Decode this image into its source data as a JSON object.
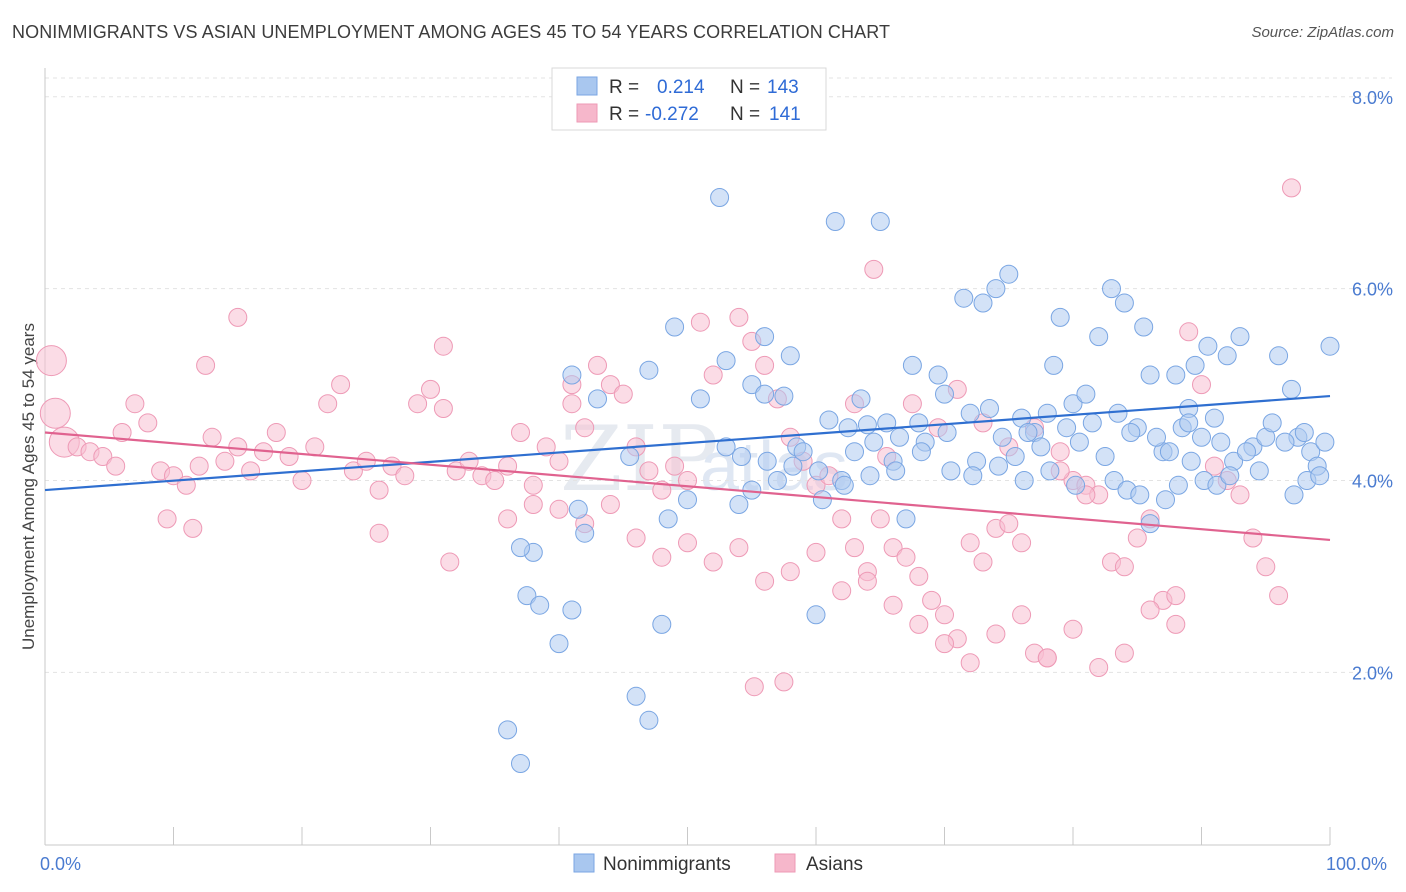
{
  "title": "NONIMMIGRANTS VS ASIAN UNEMPLOYMENT AMONG AGES 45 TO 54 YEARS CORRELATION CHART",
  "source": "Source: ZipAtlas.com",
  "watermark": {
    "zip": "ZIP",
    "atlas": "atlas"
  },
  "legend": {
    "rows": [
      {
        "r_label": "R =",
        "r_value": "0.214",
        "n_label": "N =",
        "n_value": "143",
        "color": "#a9c7ef"
      },
      {
        "r_label": "R =",
        "r_value": "-0.272",
        "n_label": "N =",
        "n_value": "141",
        "color": "#f6b7cb"
      }
    ]
  },
  "bottom_legend": [
    {
      "label": "Nonimmigrants",
      "color": "#a9c7ef"
    },
    {
      "label": "Asians",
      "color": "#f6b7cb"
    }
  ],
  "chart_data": {
    "type": "scatter",
    "title": "NONIMMIGRANTS VS ASIAN UNEMPLOYMENT AMONG AGES 45 TO 54 YEARS CORRELATION CHART",
    "xlabel": "",
    "ylabel": "Unemployment Among Ages 45 to 54 years",
    "xlim": [
      0,
      100
    ],
    "ylim": [
      0.2,
      8.3
    ],
    "x_tick_labels": [
      "0.0%",
      "100.0%"
    ],
    "y_ticks": [
      2.0,
      4.0,
      6.0,
      8.0
    ],
    "y_tick_labels": [
      "2.0%",
      "4.0%",
      "6.0%",
      "8.0%"
    ],
    "series": [
      {
        "name": "Nonimmigrants",
        "color": "#6a9fe0",
        "trend": {
          "x": [
            0,
            100
          ],
          "y": [
            3.9,
            4.88
          ],
          "color": "#2f6fd0"
        },
        "points": [
          [
            41,
            5.1
          ],
          [
            52.5,
            6.95
          ],
          [
            49,
            5.6
          ],
          [
            56,
            5.5
          ],
          [
            47,
            5.15
          ],
          [
            53,
            5.25
          ],
          [
            51,
            4.85
          ],
          [
            43,
            4.85
          ],
          [
            55,
            5.0
          ],
          [
            57.5,
            4.88
          ],
          [
            58.5,
            4.35
          ],
          [
            61,
            4.63
          ],
          [
            62.5,
            4.55
          ],
          [
            63,
            4.3
          ],
          [
            64,
            4.58
          ],
          [
            65.5,
            4.6
          ],
          [
            66,
            4.2
          ],
          [
            67.5,
            5.2
          ],
          [
            69.5,
            5.1
          ],
          [
            70,
            4.9
          ],
          [
            71.5,
            5.9
          ],
          [
            73,
            5.85
          ],
          [
            74,
            6.0
          ],
          [
            75,
            6.15
          ],
          [
            76,
            4.65
          ],
          [
            77,
            4.5
          ],
          [
            78,
            4.7
          ],
          [
            78.5,
            5.2
          ],
          [
            79,
            5.7
          ],
          [
            80,
            4.8
          ],
          [
            81,
            4.9
          ],
          [
            82,
            5.5
          ],
          [
            83,
            6.0
          ],
          [
            83.5,
            4.7
          ],
          [
            84,
            5.85
          ],
          [
            85,
            4.55
          ],
          [
            85.5,
            5.6
          ],
          [
            86,
            5.1
          ],
          [
            87,
            4.3
          ],
          [
            88,
            5.1
          ],
          [
            89,
            4.75
          ],
          [
            89.5,
            5.2
          ],
          [
            90.5,
            5.4
          ],
          [
            91,
            4.65
          ],
          [
            92,
            5.3
          ],
          [
            93,
            5.5
          ],
          [
            94,
            4.35
          ],
          [
            95,
            4.45
          ],
          [
            96,
            5.3
          ],
          [
            97,
            4.95
          ],
          [
            97.5,
            4.45
          ],
          [
            98,
            4.5
          ],
          [
            98.5,
            4.3
          ],
          [
            99,
            4.15
          ],
          [
            100,
            5.4
          ],
          [
            61.5,
            6.7
          ],
          [
            65,
            6.7
          ],
          [
            53,
            4.35
          ],
          [
            50,
            3.8
          ],
          [
            45.5,
            4.25
          ],
          [
            54,
            3.75
          ],
          [
            48.5,
            3.6
          ],
          [
            41.5,
            3.7
          ],
          [
            42,
            3.45
          ],
          [
            38,
            3.25
          ],
          [
            37,
            3.3
          ],
          [
            37.5,
            2.8
          ],
          [
            38.5,
            2.7
          ],
          [
            41,
            2.65
          ],
          [
            40,
            2.3
          ],
          [
            48,
            2.5
          ],
          [
            46,
            1.75
          ],
          [
            47,
            1.5
          ],
          [
            36,
            1.4
          ],
          [
            37,
            1.05
          ],
          [
            60,
            2.6
          ],
          [
            67,
            3.6
          ],
          [
            56,
            4.9
          ],
          [
            58,
            5.3
          ],
          [
            55,
            3.9
          ],
          [
            60.5,
            3.8
          ],
          [
            62,
            4.0
          ],
          [
            57,
            4.0
          ],
          [
            59,
            4.3
          ],
          [
            63.5,
            4.85
          ],
          [
            64.5,
            4.4
          ],
          [
            66.5,
            4.45
          ],
          [
            68,
            4.6
          ],
          [
            68.5,
            4.4
          ],
          [
            70.5,
            4.1
          ],
          [
            72,
            4.7
          ],
          [
            72.5,
            4.2
          ],
          [
            73.5,
            4.75
          ],
          [
            74.5,
            4.45
          ],
          [
            75.5,
            4.25
          ],
          [
            76.5,
            4.5
          ],
          [
            77.5,
            4.35
          ],
          [
            79.5,
            4.55
          ],
          [
            80.5,
            4.4
          ],
          [
            81.5,
            4.6
          ],
          [
            82.5,
            4.25
          ],
          [
            84.5,
            4.5
          ],
          [
            86.5,
            4.45
          ],
          [
            87.5,
            4.3
          ],
          [
            88.5,
            4.55
          ],
          [
            89,
            4.6
          ],
          [
            90,
            4.45
          ],
          [
            91.5,
            4.4
          ],
          [
            92.5,
            4.2
          ],
          [
            93.5,
            4.3
          ],
          [
            94.5,
            4.1
          ],
          [
            95.5,
            4.6
          ],
          [
            96.5,
            4.4
          ],
          [
            97.2,
            3.85
          ],
          [
            98.2,
            4.0
          ],
          [
            99.2,
            4.05
          ],
          [
            99.6,
            4.4
          ],
          [
            86,
            3.55
          ],
          [
            80.2,
            3.95
          ],
          [
            83.2,
            4.0
          ],
          [
            84.2,
            3.9
          ],
          [
            85.2,
            3.85
          ],
          [
            87.2,
            3.8
          ],
          [
            88.2,
            3.95
          ],
          [
            89.2,
            4.2
          ],
          [
            90.2,
            4.0
          ],
          [
            91.2,
            3.95
          ],
          [
            92.2,
            4.05
          ],
          [
            78.2,
            4.1
          ],
          [
            76.2,
            4.0
          ],
          [
            74.2,
            4.15
          ],
          [
            72.2,
            4.05
          ],
          [
            70.2,
            4.5
          ],
          [
            68.2,
            4.3
          ],
          [
            66.2,
            4.1
          ],
          [
            64.2,
            4.05
          ],
          [
            62.2,
            3.95
          ],
          [
            60.2,
            4.1
          ],
          [
            58.2,
            4.15
          ],
          [
            56.2,
            4.2
          ],
          [
            54.2,
            4.25
          ]
        ]
      },
      {
        "name": "Asians",
        "color": "#f29bb8",
        "trend": {
          "x": [
            0,
            100
          ],
          "y": [
            4.5,
            3.38
          ],
          "color": "#e0628f"
        },
        "points": [
          [
            0.5,
            5.25
          ],
          [
            0.8,
            4.7
          ],
          [
            1.5,
            4.4
          ],
          [
            2.5,
            4.35
          ],
          [
            3.5,
            4.3
          ],
          [
            4.5,
            4.25
          ],
          [
            5.5,
            4.15
          ],
          [
            6,
            4.5
          ],
          [
            7,
            4.8
          ],
          [
            8,
            4.6
          ],
          [
            9,
            4.1
          ],
          [
            10,
            4.05
          ],
          [
            11,
            3.95
          ],
          [
            12,
            4.15
          ],
          [
            13,
            4.45
          ],
          [
            14,
            4.2
          ],
          [
            15,
            4.35
          ],
          [
            16,
            4.1
          ],
          [
            17,
            4.3
          ],
          [
            18,
            4.5
          ],
          [
            19,
            4.25
          ],
          [
            20,
            4.0
          ],
          [
            21,
            4.35
          ],
          [
            22,
            4.8
          ],
          [
            23,
            5.0
          ],
          [
            24,
            4.1
          ],
          [
            25,
            4.2
          ],
          [
            26,
            3.9
          ],
          [
            27,
            4.15
          ],
          [
            28,
            4.05
          ],
          [
            29,
            4.8
          ],
          [
            30,
            4.95
          ],
          [
            31,
            4.75
          ],
          [
            32,
            4.1
          ],
          [
            33,
            4.2
          ],
          [
            34,
            4.05
          ],
          [
            35,
            4.0
          ],
          [
            36,
            4.15
          ],
          [
            37,
            4.5
          ],
          [
            38,
            3.95
          ],
          [
            39,
            4.35
          ],
          [
            40,
            4.2
          ],
          [
            41,
            4.8
          ],
          [
            42,
            4.55
          ],
          [
            43,
            5.2
          ],
          [
            44,
            5.0
          ],
          [
            45,
            4.9
          ],
          [
            46,
            4.35
          ],
          [
            47,
            4.1
          ],
          [
            48,
            3.9
          ],
          [
            49,
            4.15
          ],
          [
            50,
            4.0
          ],
          [
            15,
            5.7
          ],
          [
            12.5,
            5.2
          ],
          [
            31,
            5.4
          ],
          [
            41,
            5.0
          ],
          [
            51,
            5.65
          ],
          [
            52,
            5.1
          ],
          [
            54,
            5.7
          ],
          [
            55,
            5.45
          ],
          [
            56,
            5.2
          ],
          [
            57,
            4.85
          ],
          [
            58,
            4.45
          ],
          [
            59,
            4.2
          ],
          [
            60,
            3.95
          ],
          [
            61,
            4.05
          ],
          [
            62,
            3.6
          ],
          [
            63,
            3.3
          ],
          [
            64,
            3.05
          ],
          [
            65,
            3.6
          ],
          [
            66,
            3.3
          ],
          [
            67,
            3.2
          ],
          [
            68,
            3.0
          ],
          [
            69,
            2.75
          ],
          [
            70,
            2.6
          ],
          [
            71,
            2.35
          ],
          [
            72,
            3.35
          ],
          [
            73,
            3.15
          ],
          [
            74,
            3.5
          ],
          [
            75,
            3.55
          ],
          [
            76,
            3.35
          ],
          [
            77,
            2.2
          ],
          [
            78,
            2.15
          ],
          [
            79,
            4.3
          ],
          [
            80,
            4.0
          ],
          [
            81,
            3.95
          ],
          [
            82,
            3.85
          ],
          [
            83,
            3.15
          ],
          [
            84,
            3.1
          ],
          [
            85,
            3.4
          ],
          [
            86,
            3.6
          ],
          [
            87,
            2.75
          ],
          [
            88,
            2.5
          ],
          [
            89,
            5.55
          ],
          [
            90,
            5.0
          ],
          [
            91,
            4.15
          ],
          [
            92,
            4.0
          ],
          [
            93,
            3.85
          ],
          [
            94,
            3.4
          ],
          [
            95,
            3.1
          ],
          [
            96,
            2.8
          ],
          [
            97,
            7.05
          ],
          [
            55.2,
            1.85
          ],
          [
            57.5,
            1.9
          ],
          [
            64.5,
            6.2
          ],
          [
            63,
            4.8
          ],
          [
            65.5,
            4.25
          ],
          [
            67.5,
            4.8
          ],
          [
            69.5,
            4.55
          ],
          [
            71,
            4.95
          ],
          [
            73,
            4.6
          ],
          [
            75,
            4.35
          ],
          [
            77,
            4.55
          ],
          [
            79,
            4.1
          ],
          [
            81,
            3.85
          ],
          [
            9.5,
            3.6
          ],
          [
            11.5,
            3.5
          ],
          [
            26,
            3.45
          ],
          [
            31.5,
            3.15
          ],
          [
            36,
            3.6
          ],
          [
            38,
            3.75
          ],
          [
            40,
            3.7
          ],
          [
            42,
            3.55
          ],
          [
            44,
            3.75
          ],
          [
            46,
            3.4
          ],
          [
            48,
            3.2
          ],
          [
            50,
            3.35
          ],
          [
            52,
            3.15
          ],
          [
            54,
            3.3
          ],
          [
            56,
            2.95
          ],
          [
            58,
            3.05
          ],
          [
            60,
            3.25
          ],
          [
            62,
            2.85
          ],
          [
            64,
            2.95
          ],
          [
            66,
            2.7
          ],
          [
            68,
            2.5
          ],
          [
            70,
            2.3
          ],
          [
            72,
            2.1
          ],
          [
            74,
            2.4
          ],
          [
            76,
            2.6
          ],
          [
            78,
            2.15
          ],
          [
            80,
            2.45
          ],
          [
            82,
            2.05
          ],
          [
            84,
            2.2
          ],
          [
            86,
            2.65
          ],
          [
            88,
            2.8
          ]
        ]
      }
    ]
  }
}
